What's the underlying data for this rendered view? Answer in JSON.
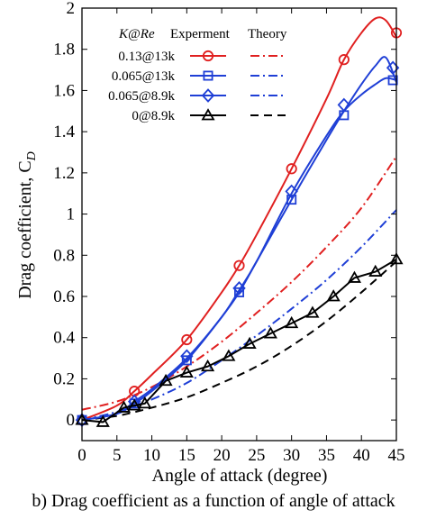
{
  "chart_data": {
    "type": "line",
    "xlabel": "Angle of attack (degree)",
    "ylabel": "Drag coefficient, C",
    "ylabel_sub": "D",
    "xlim": [
      0,
      45
    ],
    "ylim": [
      -0.1,
      2
    ],
    "xticks": [
      0,
      5,
      10,
      15,
      20,
      25,
      30,
      35,
      40,
      45
    ],
    "yticks": [
      0,
      0.2,
      0.4,
      0.6,
      0.8,
      1,
      1.2,
      1.4,
      1.6,
      1.8,
      2
    ],
    "ytick_labels": [
      "0",
      "0.2",
      "0.4",
      "0.6",
      "0.8",
      "1",
      "1.2",
      "1.4",
      "1.6",
      "1.8",
      "2"
    ],
    "grid": false,
    "legend": {
      "placement": "top-left",
      "header_param": "K@Re",
      "header_exp": "Experment",
      "header_theory": "Theory"
    },
    "experiment_series": [
      {
        "name": "0.13@13k",
        "color": "#e02020",
        "marker": "circle",
        "points": [
          [
            0,
            0
          ],
          [
            7.5,
            0.14
          ],
          [
            15,
            0.39
          ],
          [
            22.5,
            0.75
          ],
          [
            30,
            1.22
          ],
          [
            37.5,
            1.75
          ],
          [
            45,
            1.88
          ]
        ],
        "curve": [
          [
            0,
            0
          ],
          [
            5,
            0.07
          ],
          [
            7.5,
            0.14
          ],
          [
            10,
            0.22
          ],
          [
            15,
            0.39
          ],
          [
            20,
            0.62
          ],
          [
            22.5,
            0.75
          ],
          [
            25,
            0.9
          ],
          [
            30,
            1.22
          ],
          [
            35,
            1.56
          ],
          [
            37.5,
            1.75
          ],
          [
            40,
            1.88
          ],
          [
            42,
            1.95
          ],
          [
            43.5,
            1.94
          ],
          [
            45,
            1.86
          ]
        ]
      },
      {
        "name": "0.065@13k",
        "color": "#1f3fd6",
        "marker": "square",
        "points": [
          [
            0,
            0
          ],
          [
            7.5,
            0.08
          ],
          [
            15,
            0.29
          ],
          [
            22.5,
            0.62
          ],
          [
            30,
            1.07
          ],
          [
            37.5,
            1.48
          ],
          [
            44.5,
            1.65
          ]
        ],
        "curve": [
          [
            0,
            0
          ],
          [
            5,
            0.03
          ],
          [
            7.5,
            0.08
          ],
          [
            10,
            0.14
          ],
          [
            15,
            0.29
          ],
          [
            20,
            0.5
          ],
          [
            22.5,
            0.62
          ],
          [
            25,
            0.77
          ],
          [
            30,
            1.07
          ],
          [
            35,
            1.36
          ],
          [
            37.5,
            1.5
          ],
          [
            40,
            1.63
          ],
          [
            42,
            1.72
          ],
          [
            43.5,
            1.76
          ],
          [
            45,
            1.64
          ]
        ]
      },
      {
        "name": "0.065@8.9k",
        "color": "#1f3fd6",
        "marker": "diamond",
        "points": [
          [
            0,
            0
          ],
          [
            7.5,
            0.09
          ],
          [
            15,
            0.31
          ],
          [
            22.5,
            0.64
          ],
          [
            30,
            1.11
          ],
          [
            37.5,
            1.53
          ],
          [
            44.5,
            1.71
          ]
        ],
        "curve": [
          [
            0,
            0
          ],
          [
            5,
            0.03
          ],
          [
            7.5,
            0.09
          ],
          [
            10,
            0.15
          ],
          [
            15,
            0.3
          ],
          [
            20,
            0.5
          ],
          [
            22.5,
            0.63
          ],
          [
            25,
            0.77
          ],
          [
            30,
            1.1
          ],
          [
            35,
            1.38
          ],
          [
            37.5,
            1.5
          ],
          [
            40,
            1.58
          ],
          [
            42,
            1.63
          ],
          [
            43.5,
            1.66
          ],
          [
            45,
            1.65
          ]
        ]
      },
      {
        "name": "0@8.9k",
        "color": "#000000",
        "marker": "triangle",
        "points": [
          [
            0,
            0
          ],
          [
            3,
            -0.01
          ],
          [
            6,
            0.06
          ],
          [
            7.5,
            0.07
          ],
          [
            9,
            0.08
          ],
          [
            12,
            0.19
          ],
          [
            15,
            0.23
          ],
          [
            18,
            0.26
          ],
          [
            21,
            0.31
          ],
          [
            24,
            0.37
          ],
          [
            27,
            0.42
          ],
          [
            30,
            0.47
          ],
          [
            33,
            0.52
          ],
          [
            36,
            0.6
          ],
          [
            39,
            0.69
          ],
          [
            42,
            0.72
          ],
          [
            45,
            0.78
          ]
        ]
      }
    ],
    "theory_series": [
      {
        "color": "#e02020",
        "dash": "dashdot",
        "curve": [
          [
            0,
            0.05
          ],
          [
            5,
            0.09
          ],
          [
            10,
            0.16
          ],
          [
            15,
            0.26
          ],
          [
            20,
            0.38
          ],
          [
            25,
            0.52
          ],
          [
            30,
            0.67
          ],
          [
            35,
            0.84
          ],
          [
            40,
            1.03
          ],
          [
            45,
            1.28
          ]
        ]
      },
      {
        "color": "#1f3fd6",
        "dash": "dashdot",
        "curve": [
          [
            0,
            0
          ],
          [
            5,
            0.04
          ],
          [
            10,
            0.1
          ],
          [
            15,
            0.18
          ],
          [
            20,
            0.29
          ],
          [
            25,
            0.41
          ],
          [
            30,
            0.54
          ],
          [
            35,
            0.68
          ],
          [
            40,
            0.84
          ],
          [
            45,
            1.02
          ]
        ]
      },
      {
        "color": "#000000",
        "dash": "dash",
        "curve": [
          [
            0,
            0
          ],
          [
            5,
            0.02
          ],
          [
            10,
            0.06
          ],
          [
            15,
            0.11
          ],
          [
            20,
            0.18
          ],
          [
            25,
            0.26
          ],
          [
            30,
            0.36
          ],
          [
            35,
            0.48
          ],
          [
            40,
            0.62
          ],
          [
            45,
            0.77
          ]
        ]
      }
    ]
  },
  "caption": "b) Drag coefficient as a function of angle of attack"
}
